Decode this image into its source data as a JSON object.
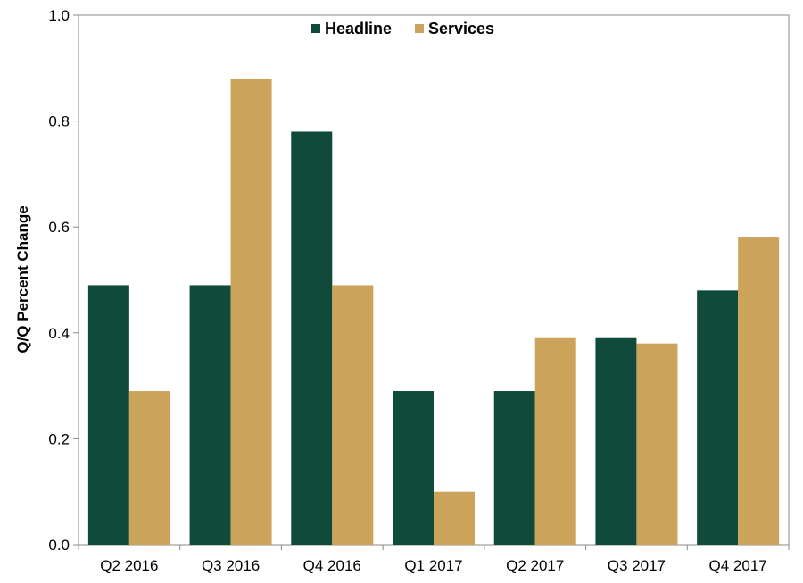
{
  "chart_data": {
    "type": "bar",
    "title": "",
    "xlabel": "",
    "ylabel": "Q/Q Percent Change",
    "ylim": [
      0.0,
      1.0
    ],
    "yticks": [
      "0.0",
      "0.2",
      "0.4",
      "0.6",
      "0.8",
      "1.0"
    ],
    "categories": [
      "Q2 2016",
      "Q3 2016",
      "Q4 2016",
      "Q1 2017",
      "Q2 2017",
      "Q3 2017",
      "Q4 2017"
    ],
    "series": [
      {
        "name": "Headline",
        "color": "#0f4a3a",
        "values": [
          0.49,
          0.49,
          0.78,
          0.29,
          0.29,
          0.39,
          0.48
        ]
      },
      {
        "name": "Services",
        "color": "#cba35a",
        "values": [
          0.29,
          0.88,
          0.49,
          0.1,
          0.39,
          0.38,
          0.58
        ]
      }
    ],
    "legend_position": "top-center",
    "grid": false
  }
}
